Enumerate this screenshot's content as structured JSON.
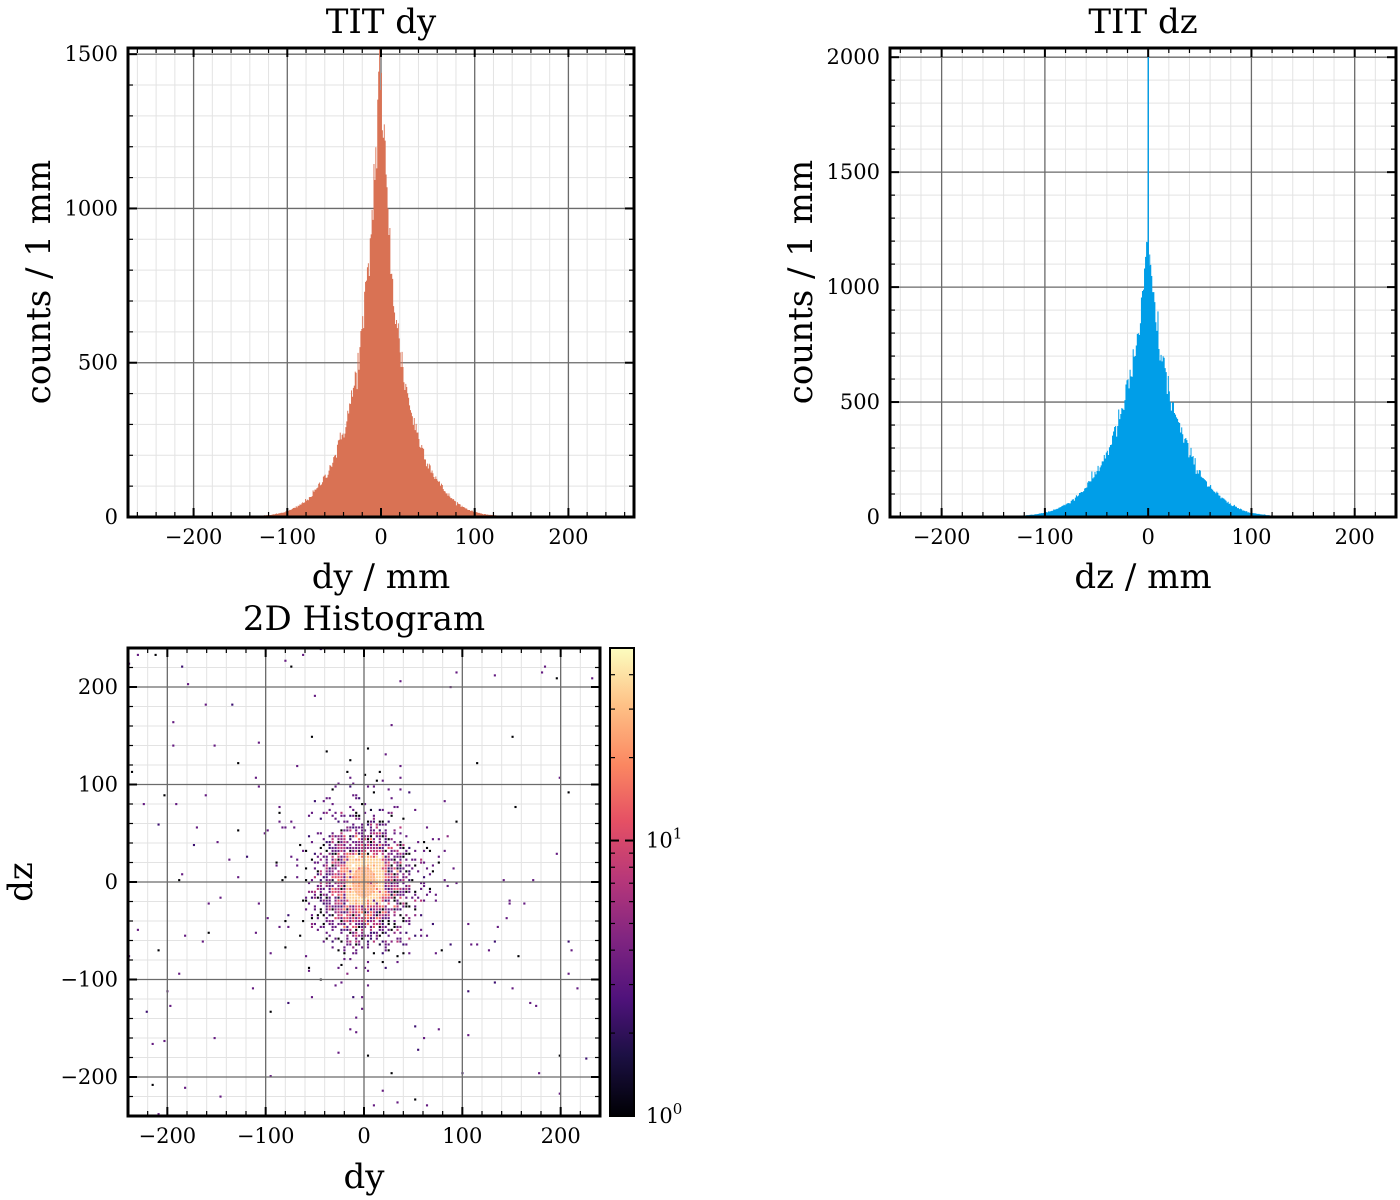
{
  "chart_data": [
    {
      "id": "dy",
      "type": "bar",
      "title": "TIT dy",
      "xlabel": "dy / mm",
      "ylabel": "counts / 1 mm",
      "xlim": [
        -270,
        270
      ],
      "ylim": [
        0,
        1520
      ],
      "xticks": [
        -200,
        -100,
        0,
        100,
        200
      ],
      "yticks": [
        0,
        500,
        1000,
        1500
      ],
      "xtick_labels": [
        "−200",
        "−100",
        "0",
        "100",
        "200"
      ],
      "ytick_labels": [
        "0",
        "500",
        "1000",
        "1500"
      ],
      "bin_width_mm": 1,
      "color": "#d97254",
      "profile": {
        "peak": 1510,
        "center": -1,
        "core_width": 14,
        "tail_amplitude": 320,
        "tail_width": 40
      },
      "grid": true
    },
    {
      "id": "dz",
      "type": "bar",
      "title": "TIT dz",
      "xlabel": "dz / mm",
      "ylabel": "counts / 1 mm",
      "xlim": [
        -250,
        240
      ],
      "ylim": [
        0,
        2040
      ],
      "xticks": [
        -200,
        -100,
        0,
        100,
        200
      ],
      "yticks": [
        0,
        500,
        1000,
        1500,
        2000
      ],
      "xtick_labels": [
        "−200",
        "−100",
        "0",
        "100",
        "200"
      ],
      "ytick_labels": [
        "0",
        "500",
        "1000",
        "1500",
        "2000"
      ],
      "bin_width_mm": 1,
      "color": "#009ee8",
      "profile": {
        "peak": 1150,
        "center": 0,
        "core_width": 18,
        "tail_amplitude": 300,
        "tail_width": 40,
        "spike_value": 2040,
        "spike_x": 0
      },
      "grid": true
    },
    {
      "id": "hist2d",
      "type": "heatmap",
      "title": "2D Histogram",
      "xlabel": "dy",
      "ylabel": "dz",
      "xlim": [
        -240,
        240
      ],
      "ylim": [
        -240,
        240
      ],
      "xticks": [
        -200,
        -100,
        0,
        100,
        200
      ],
      "yticks": [
        -200,
        -100,
        0,
        100,
        200
      ],
      "xtick_labels": [
        "−200",
        "−100",
        "0",
        "100",
        "200"
      ],
      "ytick_labels": [
        "−200",
        "−100",
        "0",
        "100",
        "200"
      ],
      "colorbar": {
        "scale": "log",
        "min": 1,
        "max": 50,
        "colormap": "magma",
        "ticks": [
          1,
          10
        ],
        "tick_bases": [
          "10",
          "10"
        ],
        "tick_exponents": [
          "0",
          "1"
        ]
      },
      "grid": true
    }
  ]
}
